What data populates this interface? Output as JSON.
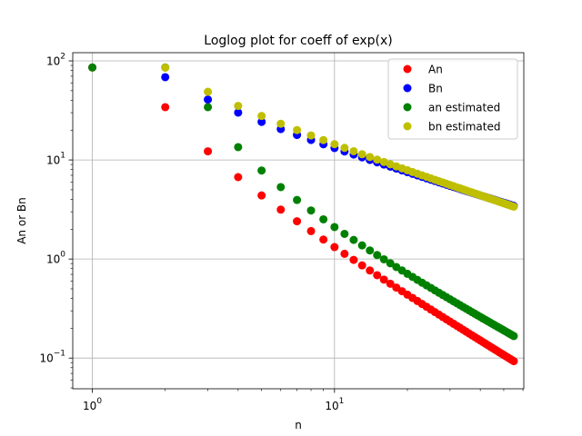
{
  "chart_data": {
    "type": "scatter",
    "title": "Loglog plot for coeff of exp(x)",
    "xlabel": "n",
    "ylabel": "An or Bn",
    "xscale": "log",
    "yscale": "log",
    "xlim": [
      0.83,
      60.5
    ],
    "ylim": [
      0.049,
      121
    ],
    "grid": true,
    "legend_position": "top-right",
    "x_major_ticks": [
      {
        "value": 1,
        "base": "10",
        "exp": "0"
      },
      {
        "value": 10,
        "base": "10",
        "exp": "1"
      }
    ],
    "y_major_ticks": [
      {
        "value": 0.1,
        "base": "10",
        "exp": "−1"
      },
      {
        "value": 1,
        "base": "10",
        "exp": "0"
      },
      {
        "value": 10,
        "base": "10",
        "exp": "1"
      },
      {
        "value": 100,
        "base": "10",
        "exp": "2"
      }
    ],
    "series": [
      {
        "name": "An",
        "color": "#ff0000",
        "formula": "an",
        "n_start": 1,
        "n_end": 55
      },
      {
        "name": "Bn",
        "color": "#0000ff",
        "formula": "bn",
        "n_start": 2,
        "n_end": 55
      },
      {
        "name": "an estimated",
        "color": "#008000",
        "formula": "an_est",
        "n_start": 1,
        "n_end": 55
      },
      {
        "name": "bn estimated",
        "color": "#bfbf00",
        "formula": "bn_est",
        "n_start": 2,
        "n_end": 55
      }
    ]
  }
}
